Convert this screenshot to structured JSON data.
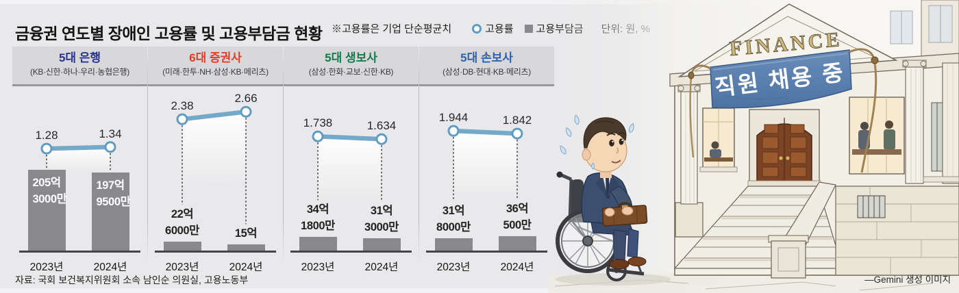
{
  "chart_data": {
    "type": "bar",
    "title": "금융권 연도별 장애인 고용률 및 고용부담금 현황",
    "note": "※고용률은 기업 단순평균치",
    "unit": "단위: 원, %",
    "legend": [
      {
        "label": "고용률",
        "marker": "circle-outline"
      },
      {
        "label": "고용부담금",
        "marker": "square"
      }
    ],
    "categories": [
      "2023년",
      "2024년"
    ],
    "panels": [
      {
        "title": "5대 은행",
        "subtitle": "(KB·신한·하나·우리·농협은행)",
        "title_color": "#273288",
        "rates": [
          1.28,
          1.34
        ],
        "rate_labels": [
          "1.28",
          "1.34"
        ],
        "levy_eok": [
          205.3,
          197.95
        ],
        "levy_labels": [
          [
            "205억",
            "3000만"
          ],
          [
            "197억",
            "9500만"
          ]
        ],
        "labels_inside_bar": true
      },
      {
        "title": "6대 증권사",
        "subtitle": "(미래·한투·NH·삼성·KB·메리츠)",
        "title_color": "#e73c23",
        "rates": [
          2.38,
          2.66
        ],
        "rate_labels": [
          "2.38",
          "2.66"
        ],
        "levy_eok": [
          22.6,
          15
        ],
        "levy_labels": [
          [
            "22억",
            "6000만"
          ],
          [
            "15억"
          ]
        ],
        "labels_inside_bar": false
      },
      {
        "title": "5대 생보사",
        "subtitle": "(삼성·한화·교보·신한·KB)",
        "title_color": "#157a4d",
        "rates": [
          1.738,
          1.634
        ],
        "rate_labels": [
          "1.738",
          "1.634"
        ],
        "levy_eok": [
          34.18,
          31.3
        ],
        "levy_labels": [
          [
            "34억",
            "1800만"
          ],
          [
            "31억",
            "3000만"
          ]
        ],
        "labels_inside_bar": false
      },
      {
        "title": "5대 손보사",
        "subtitle": "(삼성·DB·현대·KB·메리츠)",
        "title_color": "#2e60ac",
        "rates": [
          1.944,
          1.842
        ],
        "rate_labels": [
          "1.944",
          "1.842"
        ],
        "levy_eok": [
          31.8,
          36.05
        ],
        "levy_labels": [
          [
            "31억",
            "8000만"
          ],
          [
            "36억",
            "500만"
          ]
        ],
        "labels_inside_bar": false
      }
    ]
  },
  "source": "자료: 국회 보건복지위원회 소속 남인순 의원실, 고용노동부",
  "illustration": {
    "building_sign": "FINANCE",
    "banner_text": "직원 채용 중",
    "credit": "―Gemini 생성 이미지"
  },
  "colors": {
    "background": "#e9e9eb",
    "rate_line": "#74a9c9",
    "dot_stroke": "#5f9cc0",
    "levy_bar": "#88888d",
    "panel_header_bg": "#d8d8da",
    "banner_blue": "#5b80b0"
  }
}
